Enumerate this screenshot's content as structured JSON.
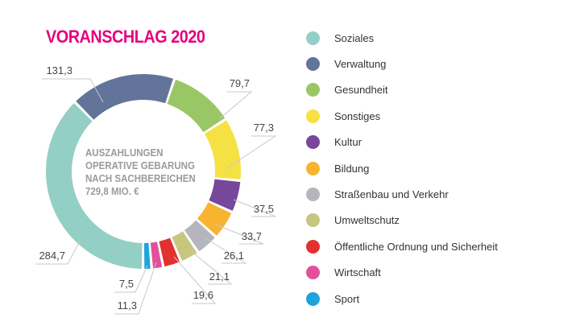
{
  "chart_data": {
    "type": "pie",
    "title": "VORANSCHLAG 2020",
    "center_label": [
      "AUSZAHLUNGEN",
      "OPERATIVE GEBARUNG",
      "NACH SACHBEREICHEN",
      "729,8 MIO. €"
    ],
    "legend_position": "right",
    "categories": [
      "Soziales",
      "Verwaltung",
      "Gesundheit",
      "Sonstiges",
      "Kultur",
      "Bildung",
      "Straßenbau und Verkehr",
      "Umweltschutz",
      "Öffentliche Ordnung und Sicherheit",
      "Wirtschaft",
      "Sport"
    ],
    "values": [
      284.7,
      131.3,
      79.7,
      77.3,
      37.5,
      33.7,
      26.1,
      21.1,
      19.6,
      11.3,
      7.5
    ],
    "value_labels": [
      "284,7",
      "131,3",
      "79,7",
      "77,3",
      "37,5",
      "33,7",
      "26,1",
      "21,1",
      "19,6",
      "11,3",
      "7,5"
    ],
    "colors": [
      "#93cfc4",
      "#63749a",
      "#9ac766",
      "#f6e142",
      "#76479a",
      "#f7b431",
      "#b5b6bd",
      "#c7c67f",
      "#e2312f",
      "#e0519a",
      "#1fa3dc"
    ]
  }
}
